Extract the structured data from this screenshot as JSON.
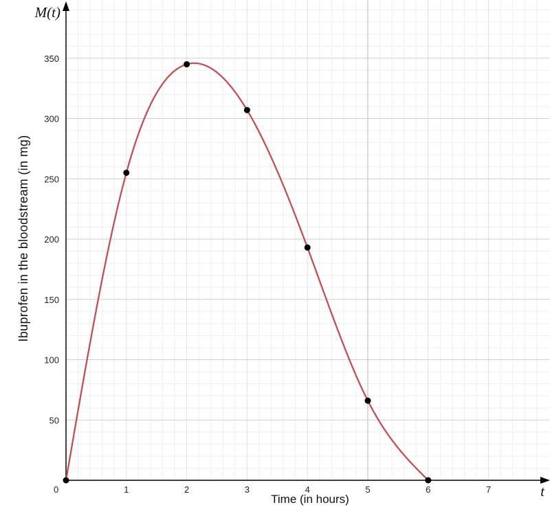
{
  "chart_data": {
    "type": "line",
    "title": "",
    "xlabel": "Time (in hours)",
    "ylabel": "Ibuprofen in the bloodstream (in mg)",
    "x_axis_name": "t",
    "y_axis_name": "M(t)",
    "xlim": [
      0,
      7.9
    ],
    "ylim": [
      0,
      390
    ],
    "x_ticks": [
      1,
      2,
      3,
      4,
      5,
      6,
      7
    ],
    "y_ticks": [
      50,
      100,
      150,
      200,
      250,
      300,
      350
    ],
    "origin_label": "0",
    "grid": true,
    "curve_color": "#c44e52",
    "point_color": "#000000",
    "series": [
      {
        "points": [
          {
            "x": 0,
            "y": 0
          },
          {
            "x": 1,
            "y": 255
          },
          {
            "x": 2,
            "y": 345
          },
          {
            "x": 3,
            "y": 307
          },
          {
            "x": 4,
            "y": 193
          },
          {
            "x": 5,
            "y": 66
          },
          {
            "x": 6,
            "y": 0
          }
        ]
      }
    ]
  }
}
